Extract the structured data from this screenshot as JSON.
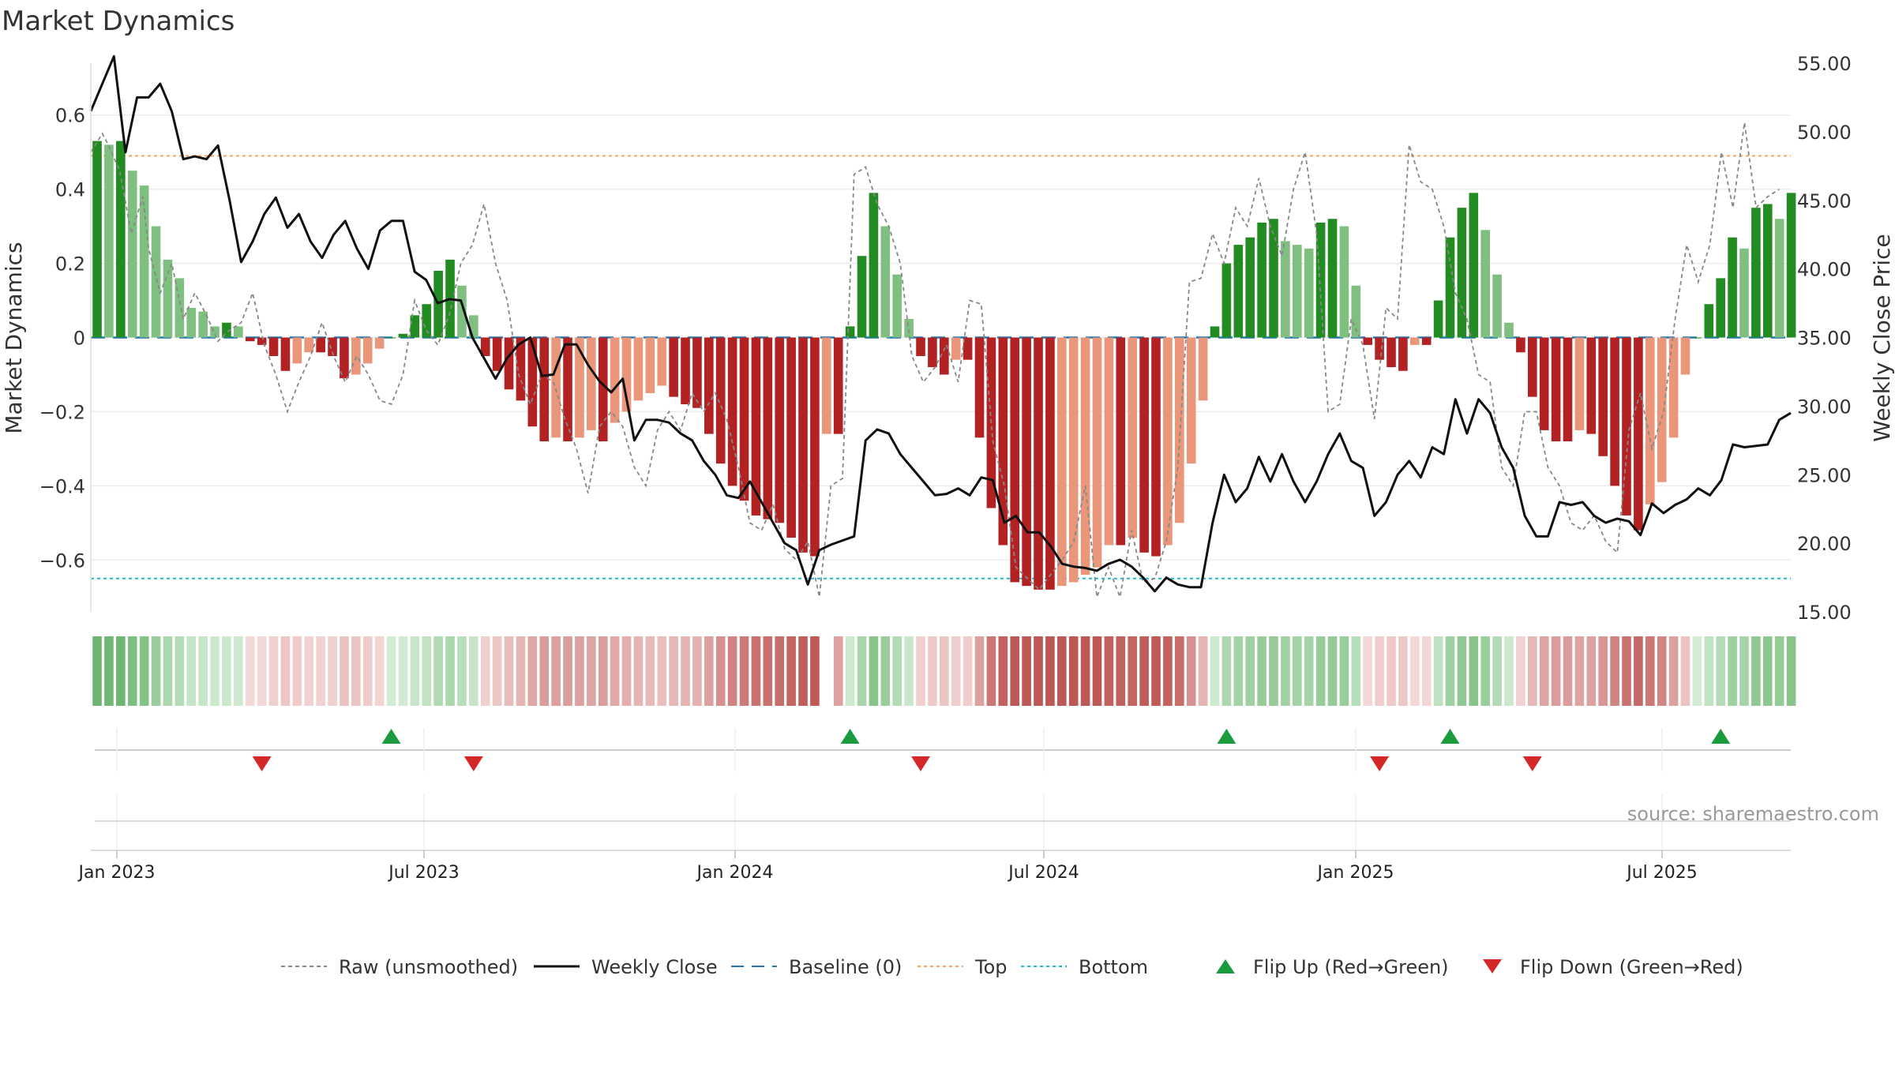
{
  "title": "Market Dynamics",
  "source": "source: sharemaestro.com",
  "colors": {
    "green_strong": "#228b22",
    "green_light": "#7fbf7f",
    "red_strong": "#b22222",
    "red_light": "#e9967a",
    "baseline": "#1f77b4",
    "top": "#f4a261",
    "bottom": "#17becf",
    "raw": "#888888",
    "close": "#111111",
    "flip_up": "#1a9c3e",
    "flip_down": "#d62728"
  },
  "chart_data": {
    "type": "bar",
    "title": "Market Dynamics",
    "ylabel": "Market Dynamics",
    "y2label": "Weekly Close Price",
    "ylim": [
      -0.74,
      0.74
    ],
    "y2lim": [
      15,
      55
    ],
    "yticks": [
      {
        "v": 0.6,
        "t": "0.6"
      },
      {
        "v": 0.4,
        "t": "0.4"
      },
      {
        "v": 0.2,
        "t": "0.2"
      },
      {
        "v": 0,
        "t": "0"
      },
      {
        "v": -0.2,
        "t": "−0.2"
      },
      {
        "v": -0.4,
        "t": "−0.4"
      },
      {
        "v": -0.6,
        "t": "−0.6"
      }
    ],
    "y2ticks": [
      "15.00",
      "20.00",
      "25.00",
      "30.00",
      "35.00",
      "40.00",
      "45.00",
      "50.00",
      "55.00"
    ],
    "xticks": [
      "Jan 2023",
      "Jul 2023",
      "Jan 2024",
      "Jul 2024",
      "Jan 2025",
      "Jul 2025"
    ],
    "baseline": 0,
    "top": 0.49,
    "bottom": -0.65,
    "momentum": [
      0.53,
      0.52,
      0.53,
      0.45,
      0.41,
      0.3,
      0.21,
      0.16,
      0.08,
      0.07,
      0.03,
      0.04,
      0.03,
      -0.01,
      -0.02,
      -0.05,
      -0.09,
      -0.07,
      -0.04,
      -0.04,
      -0.05,
      -0.11,
      -0.1,
      -0.07,
      -0.03,
      0.0,
      0.01,
      0.06,
      0.09,
      0.18,
      0.21,
      0.14,
      0.06,
      -0.05,
      -0.09,
      -0.14,
      -0.17,
      -0.24,
      -0.28,
      -0.27,
      -0.28,
      -0.27,
      -0.25,
      -0.28,
      -0.23,
      -0.2,
      -0.17,
      -0.15,
      -0.13,
      -0.16,
      -0.18,
      -0.19,
      -0.26,
      -0.34,
      -0.4,
      -0.44,
      -0.48,
      -0.49,
      -0.5,
      -0.54,
      -0.58,
      -0.59,
      -0.26,
      -0.26,
      0.03,
      0.22,
      0.39,
      0.3,
      0.17,
      0.05,
      -0.05,
      -0.08,
      -0.1,
      -0.06,
      -0.06,
      -0.27,
      -0.46,
      -0.56,
      -0.66,
      -0.67,
      -0.68,
      -0.68,
      -0.67,
      -0.66,
      -0.64,
      -0.62,
      -0.56,
      -0.56,
      -0.54,
      -0.58,
      -0.59,
      -0.56,
      -0.5,
      -0.34,
      -0.17,
      0.03,
      0.2,
      0.25,
      0.27,
      0.31,
      0.32,
      0.26,
      0.25,
      0.24,
      0.31,
      0.32,
      0.3,
      0.14,
      -0.02,
      -0.06,
      -0.08,
      -0.09,
      -0.02,
      -0.02,
      0.1,
      0.27,
      0.35,
      0.39,
      0.29,
      0.17,
      0.04,
      -0.04,
      -0.16,
      -0.25,
      -0.28,
      -0.28,
      -0.25,
      -0.26,
      -0.32,
      -0.4,
      -0.48,
      -0.52,
      -0.45,
      -0.39,
      -0.27,
      -0.1,
      0.0,
      0.09,
      0.16,
      0.27,
      0.24,
      0.35,
      0.36,
      0.32,
      0.39
    ],
    "weekly_close": [
      [
        0,
        51.5
      ],
      [
        2,
        53.5
      ],
      [
        4,
        55.5
      ],
      [
        6,
        48.5
      ],
      [
        8,
        52.5
      ],
      [
        10,
        52.5
      ],
      [
        12,
        53.5
      ],
      [
        14,
        51.5
      ],
      [
        16,
        48.0
      ],
      [
        18,
        48.2
      ],
      [
        20,
        48.0
      ],
      [
        22,
        49.0
      ],
      [
        24,
        45.0
      ],
      [
        26,
        40.5
      ],
      [
        28,
        42.0
      ],
      [
        30,
        44.0
      ],
      [
        32,
        45.2
      ],
      [
        34,
        43.0
      ],
      [
        36,
        44.0
      ],
      [
        38,
        42.0
      ],
      [
        40,
        40.8
      ],
      [
        42,
        42.5
      ],
      [
        44,
        43.5
      ],
      [
        46,
        41.5
      ],
      [
        48,
        40.0
      ],
      [
        50,
        42.8
      ],
      [
        52,
        43.5
      ],
      [
        54,
        43.5
      ],
      [
        56,
        39.8
      ],
      [
        58,
        39.2
      ],
      [
        60,
        37.5
      ],
      [
        62,
        37.8
      ],
      [
        64,
        37.7
      ],
      [
        66,
        35.0
      ],
      [
        68,
        33.5
      ],
      [
        70,
        32.0
      ],
      [
        72,
        33.5
      ],
      [
        74,
        34.5
      ],
      [
        76,
        35.0
      ],
      [
        78,
        32.2
      ],
      [
        80,
        32.3
      ],
      [
        82,
        34.5
      ],
      [
        84,
        34.5
      ],
      [
        86,
        33.0
      ],
      [
        88,
        31.8
      ],
      [
        90,
        31.0
      ],
      [
        92,
        32.0
      ],
      [
        94,
        27.5
      ],
      [
        96,
        29.0
      ],
      [
        98,
        29.0
      ],
      [
        100,
        28.8
      ],
      [
        102,
        28.0
      ],
      [
        104,
        27.5
      ],
      [
        106,
        26.0
      ],
      [
        108,
        25.0
      ],
      [
        110,
        23.5
      ],
      [
        112,
        23.3
      ],
      [
        114,
        24.5
      ],
      [
        116,
        23.0
      ],
      [
        118,
        21.5
      ],
      [
        120,
        20.0
      ],
      [
        122,
        19.5
      ],
      [
        124,
        17.0
      ],
      [
        126,
        19.5
      ],
      [
        128,
        19.9
      ],
      [
        130,
        20.2
      ],
      [
        132,
        20.5
      ],
      [
        134,
        27.5
      ],
      [
        136,
        28.3
      ],
      [
        138,
        28.0
      ],
      [
        140,
        26.5
      ],
      [
        142,
        25.5
      ],
      [
        144,
        24.5
      ],
      [
        146,
        23.5
      ],
      [
        148,
        23.6
      ],
      [
        150,
        24.0
      ],
      [
        152,
        23.5
      ],
      [
        154,
        24.8
      ],
      [
        156,
        24.6
      ],
      [
        158,
        21.5
      ],
      [
        160,
        22.0
      ],
      [
        162,
        20.8
      ],
      [
        164,
        20.8
      ],
      [
        166,
        19.8
      ],
      [
        168,
        18.5
      ],
      [
        170,
        18.3
      ],
      [
        172,
        18.2
      ],
      [
        174,
        18.0
      ],
      [
        176,
        18.5
      ],
      [
        178,
        18.8
      ],
      [
        180,
        18.3
      ],
      [
        182,
        17.5
      ],
      [
        184,
        16.5
      ],
      [
        186,
        17.5
      ],
      [
        188,
        17.0
      ],
      [
        190,
        16.8
      ],
      [
        192,
        16.8
      ],
      [
        194,
        21.5
      ],
      [
        196,
        25.0
      ],
      [
        198,
        23.0
      ],
      [
        200,
        24.0
      ],
      [
        202,
        26.3
      ],
      [
        204,
        24.5
      ],
      [
        206,
        26.5
      ],
      [
        208,
        24.5
      ],
      [
        210,
        23.0
      ],
      [
        212,
        24.5
      ],
      [
        214,
        26.5
      ],
      [
        216,
        28.0
      ],
      [
        218,
        26.0
      ],
      [
        220,
        25.5
      ],
      [
        222,
        22.0
      ],
      [
        224,
        23.0
      ],
      [
        226,
        25.0
      ],
      [
        228,
        26.0
      ],
      [
        230,
        24.8
      ],
      [
        232,
        27.0
      ],
      [
        234,
        26.5
      ],
      [
        236,
        30.5
      ],
      [
        238,
        28.0
      ],
      [
        240,
        30.5
      ],
      [
        242,
        29.5
      ],
      [
        244,
        27.0
      ],
      [
        246,
        25.5
      ],
      [
        248,
        22.0
      ],
      [
        250,
        20.5
      ],
      [
        252,
        20.5
      ],
      [
        254,
        23.0
      ],
      [
        256,
        22.8
      ],
      [
        258,
        23.0
      ],
      [
        260,
        22.0
      ],
      [
        262,
        21.5
      ],
      [
        264,
        21.8
      ],
      [
        266,
        21.6
      ],
      [
        268,
        20.6
      ],
      [
        270,
        22.9
      ],
      [
        272,
        22.2
      ],
      [
        274,
        22.8
      ],
      [
        276,
        23.2
      ],
      [
        278,
        24.0
      ],
      [
        280,
        23.5
      ],
      [
        282,
        24.6
      ],
      [
        284,
        27.2
      ],
      [
        286,
        27.0
      ],
      [
        288,
        27.1
      ],
      [
        290,
        27.2
      ],
      [
        292,
        29.0
      ],
      [
        294,
        29.5
      ]
    ],
    "raw": [
      [
        0,
        0.5
      ],
      [
        2,
        0.55
      ],
      [
        3,
        0.52
      ],
      [
        5,
        0.45
      ],
      [
        7,
        0.28
      ],
      [
        9,
        0.38
      ],
      [
        10,
        0.24
      ],
      [
        12,
        0.12
      ],
      [
        14,
        0.2
      ],
      [
        16,
        0.05
      ],
      [
        18,
        0.12
      ],
      [
        20,
        0.06
      ],
      [
        22,
        -0.01
      ],
      [
        24,
        0.02
      ],
      [
        26,
        0.04
      ],
      [
        28,
        0.12
      ],
      [
        30,
        -0.02
      ],
      [
        32,
        -0.1
      ],
      [
        34,
        -0.2
      ],
      [
        36,
        -0.12
      ],
      [
        38,
        -0.05
      ],
      [
        40,
        0.04
      ],
      [
        42,
        -0.05
      ],
      [
        44,
        -0.12
      ],
      [
        46,
        -0.05
      ],
      [
        48,
        -0.1
      ],
      [
        50,
        -0.17
      ],
      [
        52,
        -0.18
      ],
      [
        54,
        -0.1
      ],
      [
        56,
        0.1
      ],
      [
        58,
        0.02
      ],
      [
        60,
        -0.02
      ],
      [
        62,
        0.06
      ],
      [
        64,
        0.2
      ],
      [
        66,
        0.25
      ],
      [
        68,
        0.36
      ],
      [
        70,
        0.2
      ],
      [
        72,
        0.1
      ],
      [
        74,
        -0.1
      ],
      [
        76,
        -0.18
      ],
      [
        78,
        -0.1
      ],
      [
        80,
        -0.12
      ],
      [
        82,
        -0.22
      ],
      [
        84,
        -0.3
      ],
      [
        86,
        -0.42
      ],
      [
        88,
        -0.24
      ],
      [
        90,
        -0.2
      ],
      [
        92,
        -0.24
      ],
      [
        94,
        -0.35
      ],
      [
        96,
        -0.4
      ],
      [
        98,
        -0.25
      ],
      [
        100,
        -0.2
      ],
      [
        102,
        -0.25
      ],
      [
        104,
        -0.15
      ],
      [
        106,
        -0.2
      ],
      [
        108,
        -0.15
      ],
      [
        110,
        -0.22
      ],
      [
        112,
        -0.35
      ],
      [
        114,
        -0.5
      ],
      [
        116,
        -0.52
      ],
      [
        118,
        -0.45
      ],
      [
        120,
        -0.57
      ],
      [
        122,
        -0.6
      ],
      [
        124,
        -0.55
      ],
      [
        126,
        -0.7
      ],
      [
        128,
        -0.4
      ],
      [
        130,
        -0.38
      ],
      [
        132,
        0.44
      ],
      [
        134,
        0.46
      ],
      [
        136,
        0.36
      ],
      [
        138,
        0.3
      ],
      [
        140,
        0.2
      ],
      [
        142,
        -0.05
      ],
      [
        144,
        -0.12
      ],
      [
        146,
        -0.08
      ],
      [
        148,
        -0.02
      ],
      [
        150,
        -0.12
      ],
      [
        152,
        0.1
      ],
      [
        154,
        0.09
      ],
      [
        156,
        -0.28
      ],
      [
        158,
        -0.4
      ],
      [
        160,
        -0.62
      ],
      [
        162,
        -0.65
      ],
      [
        164,
        -0.68
      ],
      [
        166,
        -0.64
      ],
      [
        168,
        -0.6
      ],
      [
        170,
        -0.55
      ],
      [
        172,
        -0.4
      ],
      [
        174,
        -0.7
      ],
      [
        176,
        -0.62
      ],
      [
        178,
        -0.7
      ],
      [
        180,
        -0.52
      ],
      [
        182,
        -0.66
      ],
      [
        184,
        -0.65
      ],
      [
        186,
        -0.55
      ],
      [
        188,
        -0.35
      ],
      [
        190,
        0.15
      ],
      [
        192,
        0.16
      ],
      [
        194,
        0.28
      ],
      [
        196,
        0.2
      ],
      [
        198,
        0.35
      ],
      [
        200,
        0.3
      ],
      [
        202,
        0.43
      ],
      [
        204,
        0.3
      ],
      [
        206,
        0.22
      ],
      [
        208,
        0.4
      ],
      [
        210,
        0.5
      ],
      [
        212,
        0.28
      ],
      [
        214,
        -0.2
      ],
      [
        216,
        -0.18
      ],
      [
        218,
        0.05
      ],
      [
        220,
        -0.02
      ],
      [
        222,
        -0.22
      ],
      [
        224,
        0.08
      ],
      [
        226,
        0.05
      ],
      [
        228,
        0.52
      ],
      [
        230,
        0.42
      ],
      [
        232,
        0.4
      ],
      [
        234,
        0.3
      ],
      [
        236,
        0.12
      ],
      [
        238,
        0.05
      ],
      [
        240,
        -0.1
      ],
      [
        242,
        -0.12
      ],
      [
        244,
        -0.35
      ],
      [
        246,
        -0.4
      ],
      [
        248,
        -0.2
      ],
      [
        250,
        -0.2
      ],
      [
        252,
        -0.35
      ],
      [
        254,
        -0.4
      ],
      [
        256,
        -0.5
      ],
      [
        258,
        -0.52
      ],
      [
        260,
        -0.48
      ],
      [
        262,
        -0.55
      ],
      [
        264,
        -0.58
      ],
      [
        266,
        -0.25
      ],
      [
        268,
        -0.15
      ],
      [
        270,
        -0.3
      ],
      [
        272,
        -0.2
      ],
      [
        274,
        0.05
      ],
      [
        276,
        0.25
      ],
      [
        278,
        0.15
      ],
      [
        280,
        0.25
      ],
      [
        282,
        0.5
      ],
      [
        284,
        0.35
      ],
      [
        286,
        0.58
      ],
      [
        288,
        0.35
      ],
      [
        290,
        0.38
      ],
      [
        292,
        0.4
      ]
    ],
    "flip_up_weeks": [
      25,
      64,
      96,
      115,
      138
    ],
    "flip_down_weeks": [
      14,
      32,
      70,
      109,
      122
    ],
    "legend": [
      {
        "label": "Raw (unsmoothed)",
        "kind": "line-dash",
        "color": "#888888"
      },
      {
        "label": "Weekly Close",
        "kind": "line",
        "color": "#111111"
      },
      {
        "label": "Baseline (0)",
        "kind": "line-longdash",
        "color": "#1f77b4"
      },
      {
        "label": "Top",
        "kind": "line-dot",
        "color": "#f4a261"
      },
      {
        "label": "Bottom",
        "kind": "line-dot",
        "color": "#17becf"
      },
      {
        "label": "Flip Up (Red→Green)",
        "kind": "tri-up",
        "color": "#1a9c3e"
      },
      {
        "label": "Flip Down (Green→Red)",
        "kind": "tri-down",
        "color": "#d62728"
      }
    ]
  }
}
